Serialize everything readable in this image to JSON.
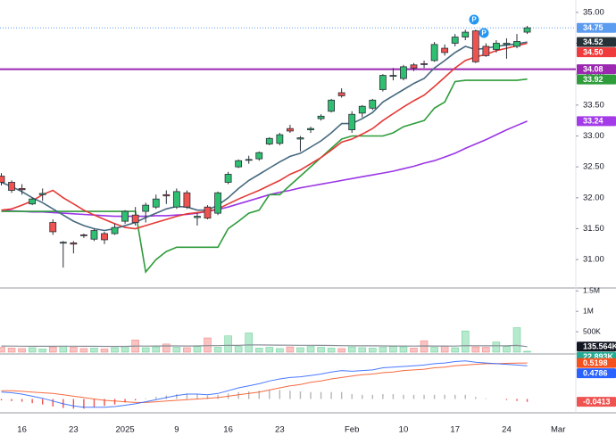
{
  "chart_data": {
    "type": "candlestick",
    "categories": [
      null,
      null,
      "16",
      null,
      null,
      null,
      null,
      "23",
      null,
      null,
      null,
      null,
      "2025",
      null,
      null,
      null,
      null,
      "9",
      null,
      null,
      null,
      null,
      "16",
      null,
      null,
      null,
      null,
      "23",
      null,
      null,
      null,
      null,
      null,
      null,
      "Feb",
      null,
      null,
      null,
      null,
      "10",
      null,
      null,
      null,
      null,
      "17",
      null,
      null,
      null,
      null,
      "24",
      null,
      null,
      null,
      null,
      "Mar"
    ],
    "open": [
      32.35,
      32.25,
      32.15,
      31.9,
      32.05,
      31.6,
      31.28,
      31.27,
      31.4,
      31.33,
      31.42,
      31.42,
      31.62,
      31.72,
      31.78,
      31.85,
      32.05,
      31.85,
      32.08,
      31.68,
      31.85,
      31.75,
      32.25,
      32.5,
      32.62,
      32.63,
      32.87,
      32.88,
      33.12,
      32.95,
      33.1,
      33.28,
      33.4,
      33.7,
      33.1,
      33.37,
      33.45,
      33.75,
      33.97,
      33.93,
      34.15,
      34.17,
      34.22,
      34.42,
      34.5,
      34.6,
      34.7,
      34.45,
      34.4,
      34.48,
      34.45,
      34.68,
      null,
      null,
      null
    ],
    "high": [
      32.4,
      32.28,
      32.22,
      32.0,
      32.15,
      31.65,
      31.3,
      31.3,
      31.42,
      31.5,
      31.45,
      31.58,
      31.8,
      31.85,
      31.92,
      32.05,
      32.12,
      32.15,
      32.12,
      31.75,
      31.88,
      32.1,
      32.42,
      32.62,
      32.68,
      32.75,
      32.98,
      33.05,
      33.18,
      33.0,
      33.15,
      33.35,
      33.6,
      33.77,
      33.4,
      33.5,
      33.6,
      34.0,
      34.1,
      34.15,
      34.18,
      34.22,
      34.52,
      34.48,
      34.65,
      34.72,
      34.72,
      34.5,
      34.55,
      34.58,
      34.65,
      34.78,
      null,
      null,
      null
    ],
    "low": [
      32.2,
      32.08,
      32.05,
      31.88,
      31.95,
      31.4,
      30.87,
      31.1,
      31.35,
      31.3,
      31.25,
      31.4,
      31.58,
      31.55,
      31.6,
      31.82,
      31.9,
      31.82,
      31.82,
      31.55,
      31.65,
      31.72,
      32.22,
      32.48,
      32.55,
      32.6,
      32.85,
      32.85,
      33.05,
      32.75,
      33.05,
      33.25,
      33.38,
      33.62,
      33.05,
      33.3,
      33.42,
      33.72,
      33.9,
      33.9,
      34.05,
      34.1,
      34.2,
      34.3,
      34.45,
      34.55,
      34.18,
      34.28,
      34.35,
      34.25,
      34.42,
      34.65,
      null,
      null,
      null
    ],
    "close": [
      32.25,
      32.12,
      32.13,
      31.98,
      32.07,
      31.45,
      31.28,
      31.25,
      31.39,
      31.47,
      31.32,
      31.52,
      31.78,
      31.6,
      31.88,
      31.98,
      32.03,
      32.1,
      31.85,
      31.7,
      31.67,
      32.08,
      32.38,
      32.6,
      32.62,
      32.73,
      32.96,
      33.02,
      33.08,
      32.97,
      33.12,
      33.32,
      33.58,
      33.65,
      33.35,
      33.48,
      33.58,
      33.98,
      33.98,
      34.12,
      34.1,
      34.16,
      34.48,
      34.35,
      34.6,
      34.68,
      34.2,
      34.3,
      34.5,
      34.5,
      34.53,
      34.75,
      null,
      null,
      null
    ],
    "up_color": "#2fbf71",
    "down_color": "#ef5350",
    "ylim": [
      30.54,
      35.2
    ],
    "yticks": [
      {
        "value": 31,
        "label": "31.00"
      },
      {
        "value": 31.5,
        "label": "31.50"
      },
      {
        "value": 32,
        "label": "32.00"
      },
      {
        "value": 32.5,
        "label": "32.50"
      },
      {
        "value": 33,
        "label": "33.00"
      },
      {
        "value": 33.5,
        "label": "33.50"
      },
      {
        "value": 34,
        "label": "34.00"
      },
      {
        "value": 34.5,
        "label": "34.50"
      },
      {
        "value": 35,
        "label": "35.00"
      }
    ],
    "series": [
      {
        "color": "#9b36e6",
        "values": [
          31.8,
          31.79,
          31.78,
          31.77,
          31.77,
          31.76,
          31.75,
          31.74,
          31.73,
          31.72,
          31.71,
          31.7,
          31.7,
          31.7,
          31.7,
          31.71,
          31.71,
          31.72,
          31.73,
          31.75,
          31.78,
          31.81,
          31.85,
          31.9,
          31.95,
          32.0,
          32.05,
          32.09,
          32.12,
          32.16,
          32.19,
          32.22,
          32.25,
          32.28,
          32.31,
          32.34,
          32.37,
          32.4,
          32.43,
          32.47,
          32.51,
          32.56,
          32.6,
          32.66,
          32.72,
          32.8,
          32.87,
          32.94,
          33.02,
          33.1,
          33.17,
          33.24,
          null,
          null,
          null
        ]
      },
      {
        "color": "#2e9c3a",
        "values": [
          31.78,
          31.78,
          31.78,
          31.78,
          31.78,
          31.78,
          31.78,
          31.78,
          31.78,
          31.78,
          31.78,
          31.78,
          31.78,
          31.78,
          30.8,
          31.0,
          31.13,
          31.2,
          31.2,
          31.2,
          31.2,
          31.2,
          31.5,
          31.62,
          31.75,
          31.8,
          32.05,
          32.05,
          32.2,
          32.35,
          32.5,
          32.65,
          32.8,
          32.95,
          33.0,
          33.0,
          33.0,
          33.0,
          33.05,
          33.15,
          33.2,
          33.25,
          33.45,
          33.55,
          33.88,
          33.9,
          33.9,
          33.9,
          33.9,
          33.9,
          33.9,
          33.92,
          null,
          null,
          null
        ]
      },
      {
        "color": "#e53935",
        "values": [
          31.8,
          31.82,
          31.88,
          31.95,
          32.05,
          32.12,
          32.0,
          31.9,
          31.8,
          31.72,
          31.65,
          31.58,
          31.52,
          31.5,
          31.55,
          31.6,
          31.65,
          31.7,
          31.74,
          31.76,
          31.78,
          31.82,
          31.9,
          31.98,
          32.05,
          32.12,
          32.2,
          32.28,
          32.38,
          32.45,
          32.55,
          32.65,
          32.77,
          32.9,
          32.95,
          33.03,
          33.12,
          33.25,
          33.36,
          33.47,
          33.57,
          33.66,
          33.8,
          33.95,
          34.1,
          34.22,
          34.28,
          34.32,
          34.38,
          34.42,
          34.46,
          34.5,
          null,
          null,
          null
        ]
      },
      {
        "color": "#46697e",
        "values": [
          32.25,
          32.18,
          32.1,
          32.0,
          31.92,
          31.82,
          31.72,
          31.62,
          31.55,
          31.5,
          31.47,
          31.5,
          31.55,
          31.6,
          31.68,
          31.75,
          31.82,
          31.86,
          31.85,
          31.8,
          31.8,
          31.88,
          32.0,
          32.15,
          32.28,
          32.38,
          32.48,
          32.58,
          32.67,
          32.72,
          32.82,
          32.92,
          33.05,
          33.2,
          33.2,
          33.28,
          33.38,
          33.55,
          33.65,
          33.75,
          33.85,
          33.93,
          34.1,
          34.22,
          34.35,
          34.45,
          34.4,
          34.42,
          34.45,
          34.47,
          34.49,
          34.52,
          null,
          null,
          null
        ]
      }
    ],
    "price_tags": [
      {
        "value": 34.75,
        "label": "34.75",
        "color": "#5b9cf0",
        "line": "dotted"
      },
      {
        "value": 34.52,
        "label": "34.52",
        "color": "#263238"
      },
      {
        "value": 34.5,
        "label": "34.50",
        "color": "#ef3b3b"
      },
      {
        "value": 34.08,
        "label": "34.08",
        "color": "#9c27b0",
        "line": "solid"
      },
      {
        "value": 33.92,
        "label": "33.92",
        "color": "#2e9c3a"
      },
      {
        "value": 33.24,
        "label": "33.24",
        "color": "#a43be8"
      }
    ],
    "events": [
      "P",
      "P"
    ],
    "volume": {
      "ylim": [
        0,
        1550000
      ],
      "yticks": [
        {
          "value": 500000,
          "label": "500K"
        },
        {
          "value": 1000000,
          "label": "1M"
        },
        {
          "value": 1500000,
          "label": "1.5M"
        }
      ],
      "values": [
        120000,
        100000,
        90000,
        110000,
        80000,
        130000,
        150000,
        120000,
        90000,
        100000,
        80000,
        110000,
        140000,
        300000,
        110000,
        130000,
        200000,
        120000,
        110000,
        140000,
        350000,
        120000,
        400000,
        140000,
        470000,
        100000,
        120000,
        90000,
        130000,
        110000,
        140000,
        120000,
        100000,
        90000,
        130000,
        110000,
        100000,
        120000,
        140000,
        130000,
        100000,
        280000,
        120000,
        150000,
        110000,
        520000,
        130000,
        120000,
        250000,
        140000,
        600000,
        22893,
        null,
        null,
        null
      ],
      "ma": {
        "color": "#8a8f98",
        "values": [
          150000,
          148000,
          146000,
          145000,
          143000,
          144000,
          146000,
          147000,
          145000,
          144000,
          142000,
          141000,
          142000,
          150000,
          149000,
          150000,
          153000,
          152000,
          151000,
          152000,
          160000,
          159000,
          168000,
          167000,
          178000,
          176000,
          175000,
          172000,
          171000,
          169000,
          168000,
          166000,
          163000,
          160000,
          158000,
          156000,
          154000,
          152000,
          151000,
          150000,
          148000,
          152000,
          151000,
          150000,
          149000,
          160000,
          158000,
          155000,
          158000,
          156000,
          165000,
          135564,
          null,
          null,
          null
        ]
      },
      "tags": [
        {
          "value": 135564,
          "label": "135.564K",
          "color": "#131722"
        },
        {
          "value": 22893,
          "label": "22.893K",
          "color": "#22ab94"
        }
      ]
    },
    "macd": {
      "ylim": [
        -0.2,
        0.65
      ],
      "lines": [
        {
          "color": "#f4511e",
          "values": [
            0.12,
            0.12,
            0.11,
            0.1,
            0.09,
            0.08,
            0.06,
            0.04,
            0.02,
            0.0,
            -0.02,
            -0.03,
            -0.04,
            -0.05,
            -0.05,
            -0.04,
            -0.03,
            -0.02,
            -0.01,
            0.0,
            0.01,
            0.02,
            0.04,
            0.06,
            0.08,
            0.1,
            0.13,
            0.16,
            0.19,
            0.21,
            0.24,
            0.26,
            0.29,
            0.31,
            0.33,
            0.35,
            0.36,
            0.38,
            0.39,
            0.41,
            0.42,
            0.43,
            0.45,
            0.46,
            0.48,
            0.49,
            0.5,
            0.51,
            0.51,
            0.515,
            0.518,
            0.5198,
            null,
            null,
            null
          ]
        },
        {
          "color": "#2962ff",
          "values": [
            0.1,
            0.09,
            0.07,
            0.04,
            0.01,
            -0.03,
            -0.07,
            -0.1,
            -0.12,
            -0.12,
            -0.12,
            -0.11,
            -0.09,
            -0.07,
            -0.04,
            -0.01,
            0.02,
            0.05,
            0.07,
            0.07,
            0.06,
            0.08,
            0.12,
            0.16,
            0.19,
            0.22,
            0.26,
            0.29,
            0.31,
            0.32,
            0.34,
            0.36,
            0.39,
            0.41,
            0.4,
            0.41,
            0.42,
            0.45,
            0.46,
            0.47,
            0.48,
            0.49,
            0.51,
            0.52,
            0.54,
            0.55,
            0.53,
            0.52,
            0.51,
            0.5,
            0.49,
            0.4786,
            null,
            null,
            null
          ]
        }
      ],
      "histogram": {
        "pos_color": "#b5b5b5",
        "neg_color": "#ef5350",
        "values": [
          -0.02,
          -0.03,
          -0.04,
          -0.06,
          -0.08,
          -0.11,
          -0.13,
          -0.14,
          -0.14,
          -0.12,
          -0.1,
          -0.08,
          -0.05,
          -0.02,
          0.01,
          0.03,
          0.05,
          0.07,
          0.08,
          0.07,
          0.05,
          0.06,
          0.08,
          0.1,
          0.11,
          0.12,
          0.13,
          0.13,
          0.12,
          0.11,
          0.1,
          0.1,
          0.1,
          0.1,
          0.07,
          0.06,
          0.06,
          0.07,
          0.07,
          0.06,
          0.06,
          0.06,
          0.06,
          0.06,
          0.06,
          0.06,
          0.03,
          0.01,
          0.0,
          -0.015,
          -0.028,
          -0.0413,
          null,
          null,
          null
        ]
      }
    }
  }
}
